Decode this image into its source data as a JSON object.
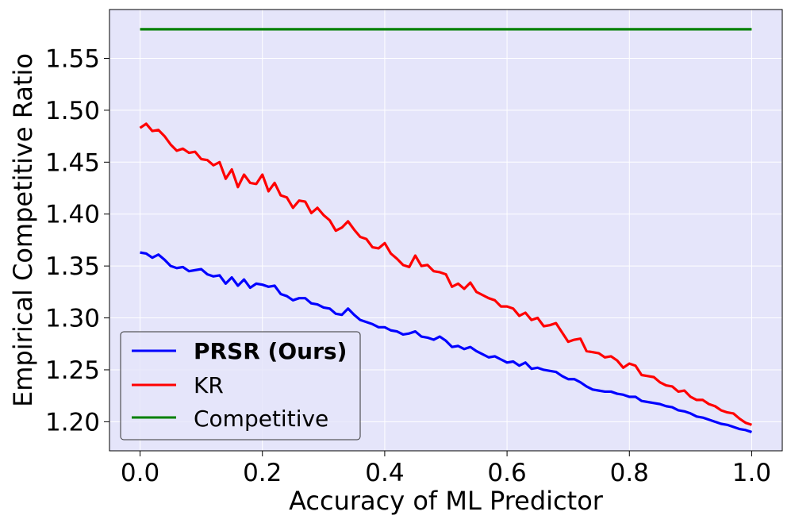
{
  "chart_data": {
    "type": "line",
    "title": "",
    "xlabel": "Accuracy of ML Predictor",
    "ylabel": "Empirical Competitive Ratio",
    "xlim": [
      -0.05,
      1.05
    ],
    "ylim": [
      1.172,
      1.597
    ],
    "x_ticks": [
      0.0,
      0.2,
      0.4,
      0.6,
      0.8,
      1.0
    ],
    "x_tick_labels": [
      "0.0",
      "0.2",
      "0.4",
      "0.6",
      "0.8",
      "1.0"
    ],
    "y_ticks": [
      1.2,
      1.25,
      1.3,
      1.35,
      1.4,
      1.45,
      1.5,
      1.55
    ],
    "y_tick_labels": [
      "1.20",
      "1.25",
      "1.30",
      "1.35",
      "1.40",
      "1.45",
      "1.50",
      "1.55"
    ],
    "grid": true,
    "background": "#e5e5fa",
    "legend_position": "lower-left",
    "series": [
      {
        "name": "PRSR (Ours)",
        "color": "#0000ff",
        "bold_label": true,
        "x": [
          0.0,
          0.01,
          0.02,
          0.03,
          0.04,
          0.05,
          0.06,
          0.07,
          0.08,
          0.09,
          0.1,
          0.11,
          0.12,
          0.13,
          0.14,
          0.15,
          0.16,
          0.17,
          0.18,
          0.19,
          0.2,
          0.21,
          0.22,
          0.23,
          0.24,
          0.25,
          0.26,
          0.27,
          0.28,
          0.29,
          0.3,
          0.31,
          0.32,
          0.33,
          0.34,
          0.35,
          0.36,
          0.37,
          0.38,
          0.39,
          0.4,
          0.41,
          0.42,
          0.43,
          0.44,
          0.45,
          0.46,
          0.47,
          0.48,
          0.49,
          0.5,
          0.51,
          0.52,
          0.53,
          0.54,
          0.55,
          0.56,
          0.57,
          0.58,
          0.59,
          0.6,
          0.61,
          0.62,
          0.63,
          0.64,
          0.65,
          0.66,
          0.67,
          0.68,
          0.69,
          0.7,
          0.71,
          0.72,
          0.73,
          0.74,
          0.75,
          0.76,
          0.77,
          0.78,
          0.79,
          0.8,
          0.81,
          0.82,
          0.83,
          0.84,
          0.85,
          0.86,
          0.87,
          0.88,
          0.89,
          0.9,
          0.91,
          0.92,
          0.93,
          0.94,
          0.95,
          0.96,
          0.97,
          0.98,
          0.99,
          1.0
        ],
        "values": [
          1.363,
          1.362,
          1.358,
          1.361,
          1.356,
          1.35,
          1.348,
          1.349,
          1.345,
          1.346,
          1.347,
          1.342,
          1.34,
          1.341,
          1.333,
          1.339,
          1.331,
          1.337,
          1.329,
          1.333,
          1.332,
          1.33,
          1.331,
          1.323,
          1.321,
          1.317,
          1.319,
          1.319,
          1.314,
          1.313,
          1.31,
          1.309,
          1.304,
          1.303,
          1.309,
          1.303,
          1.298,
          1.296,
          1.294,
          1.291,
          1.291,
          1.288,
          1.287,
          1.284,
          1.285,
          1.287,
          1.282,
          1.281,
          1.279,
          1.282,
          1.278,
          1.272,
          1.273,
          1.27,
          1.272,
          1.268,
          1.265,
          1.262,
          1.263,
          1.26,
          1.257,
          1.258,
          1.254,
          1.257,
          1.251,
          1.252,
          1.25,
          1.249,
          1.248,
          1.244,
          1.241,
          1.241,
          1.238,
          1.234,
          1.231,
          1.23,
          1.229,
          1.229,
          1.227,
          1.226,
          1.224,
          1.224,
          1.22,
          1.219,
          1.218,
          1.217,
          1.215,
          1.214,
          1.211,
          1.21,
          1.208,
          1.205,
          1.204,
          1.202,
          1.2,
          1.198,
          1.197,
          1.195,
          1.193,
          1.192,
          1.19
        ]
      },
      {
        "name": "KR",
        "color": "#ff0000",
        "bold_label": false,
        "x": [
          0.0,
          0.01,
          0.02,
          0.03,
          0.04,
          0.05,
          0.06,
          0.07,
          0.08,
          0.09,
          0.1,
          0.11,
          0.12,
          0.13,
          0.14,
          0.15,
          0.16,
          0.17,
          0.18,
          0.19,
          0.2,
          0.21,
          0.22,
          0.23,
          0.24,
          0.25,
          0.26,
          0.27,
          0.28,
          0.29,
          0.3,
          0.31,
          0.32,
          0.33,
          0.34,
          0.35,
          0.36,
          0.37,
          0.38,
          0.39,
          0.4,
          0.41,
          0.42,
          0.43,
          0.44,
          0.45,
          0.46,
          0.47,
          0.48,
          0.49,
          0.5,
          0.51,
          0.52,
          0.53,
          0.54,
          0.55,
          0.56,
          0.57,
          0.58,
          0.59,
          0.6,
          0.61,
          0.62,
          0.63,
          0.64,
          0.65,
          0.66,
          0.67,
          0.68,
          0.69,
          0.7,
          0.71,
          0.72,
          0.73,
          0.74,
          0.75,
          0.76,
          0.77,
          0.78,
          0.79,
          0.8,
          0.81,
          0.82,
          0.83,
          0.84,
          0.85,
          0.86,
          0.87,
          0.88,
          0.89,
          0.9,
          0.91,
          0.92,
          0.93,
          0.94,
          0.95,
          0.96,
          0.97,
          0.98,
          0.99,
          1.0
        ],
        "values": [
          1.483,
          1.487,
          1.48,
          1.481,
          1.475,
          1.467,
          1.461,
          1.463,
          1.459,
          1.46,
          1.453,
          1.452,
          1.447,
          1.45,
          1.434,
          1.443,
          1.426,
          1.438,
          1.43,
          1.429,
          1.438,
          1.422,
          1.43,
          1.418,
          1.416,
          1.406,
          1.413,
          1.412,
          1.401,
          1.406,
          1.399,
          1.394,
          1.384,
          1.387,
          1.393,
          1.385,
          1.378,
          1.376,
          1.368,
          1.367,
          1.372,
          1.362,
          1.357,
          1.351,
          1.349,
          1.36,
          1.35,
          1.351,
          1.345,
          1.344,
          1.342,
          1.33,
          1.333,
          1.328,
          1.334,
          1.325,
          1.322,
          1.319,
          1.317,
          1.311,
          1.311,
          1.309,
          1.302,
          1.305,
          1.298,
          1.3,
          1.292,
          1.293,
          1.295,
          1.286,
          1.277,
          1.279,
          1.28,
          1.268,
          1.267,
          1.266,
          1.262,
          1.263,
          1.259,
          1.252,
          1.256,
          1.254,
          1.245,
          1.244,
          1.243,
          1.238,
          1.235,
          1.234,
          1.229,
          1.23,
          1.224,
          1.221,
          1.221,
          1.217,
          1.215,
          1.211,
          1.209,
          1.208,
          1.203,
          1.199,
          1.197
        ]
      },
      {
        "name": "Competitive",
        "color": "#008000",
        "bold_label": false,
        "x": [
          0.0,
          1.0
        ],
        "values": [
          1.578,
          1.578
        ]
      }
    ]
  }
}
